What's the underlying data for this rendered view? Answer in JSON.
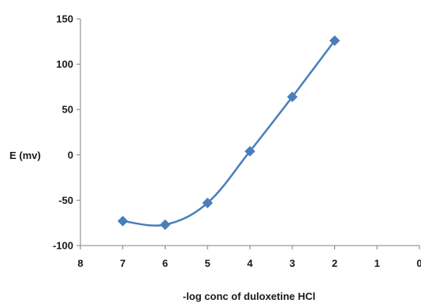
{
  "chart_data": {
    "type": "line",
    "title": "",
    "xlabel": "-log conc of duloxetine HCl",
    "ylabel": "E (mv)",
    "x_reversed": true,
    "xlim": [
      0,
      8
    ],
    "ylim": [
      -100,
      150
    ],
    "x_ticks": [
      "8",
      "7",
      "6",
      "5",
      "4",
      "3",
      "2",
      "1",
      "0"
    ],
    "y_ticks": [
      "150",
      "100",
      "50",
      "0",
      "-50",
      "-100"
    ],
    "grid": false,
    "legend": "none",
    "series": [
      {
        "color": "#4a7ebb",
        "marker": "diamond",
        "smooth": true,
        "x": [
          7,
          6,
          5,
          4,
          3,
          2
        ],
        "y": [
          -73,
          -77,
          -53,
          4,
          64,
          126
        ]
      }
    ]
  }
}
